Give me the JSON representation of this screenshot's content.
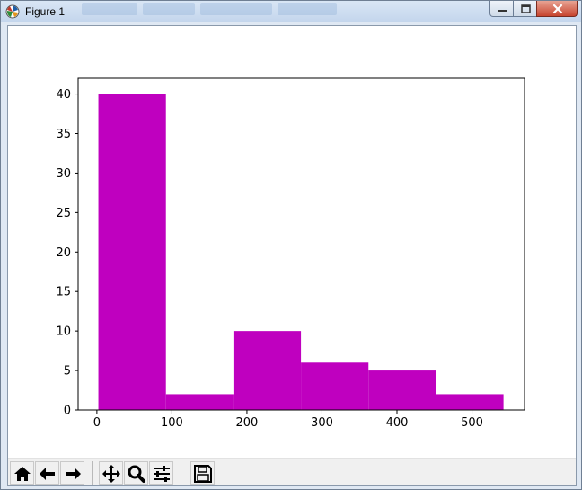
{
  "window": {
    "title": "Figure 1",
    "app_icon": "matplotlib-icon",
    "controls": [
      "minimize-icon",
      "maximize-icon",
      "close-icon"
    ]
  },
  "toolbar": {
    "buttons": [
      {
        "name": "home",
        "icon": "home-icon"
      },
      {
        "name": "back",
        "icon": "arrow-left-icon"
      },
      {
        "name": "forward",
        "icon": "arrow-right-icon"
      },
      {
        "name": "pan",
        "icon": "move-icon"
      },
      {
        "name": "zoom",
        "icon": "magnifier-icon"
      },
      {
        "name": "configure-subplots",
        "icon": "sliders-icon"
      },
      {
        "name": "save",
        "icon": "floppy-icon"
      }
    ]
  },
  "chart_data": {
    "type": "bar",
    "title": "",
    "xlabel": "",
    "ylabel": "",
    "bin_edges": [
      2,
      92,
      182,
      272,
      362,
      452,
      542
    ],
    "values": [
      40,
      2,
      10,
      6,
      5,
      2
    ],
    "xlim": [
      -25,
      570
    ],
    "ylim": [
      0,
      42
    ],
    "xticks": [
      0,
      100,
      200,
      300,
      400,
      500
    ],
    "xtick_labels": [
      "0",
      "100",
      "200",
      "300",
      "400",
      "500"
    ],
    "yticks": [
      0,
      5,
      10,
      15,
      20,
      25,
      30,
      35,
      40
    ],
    "ytick_labels": [
      "0",
      "5",
      "10",
      "15",
      "20",
      "25",
      "30",
      "35",
      "40"
    ],
    "bar_color": "#bf00bf",
    "grid": false,
    "legend": "none"
  }
}
